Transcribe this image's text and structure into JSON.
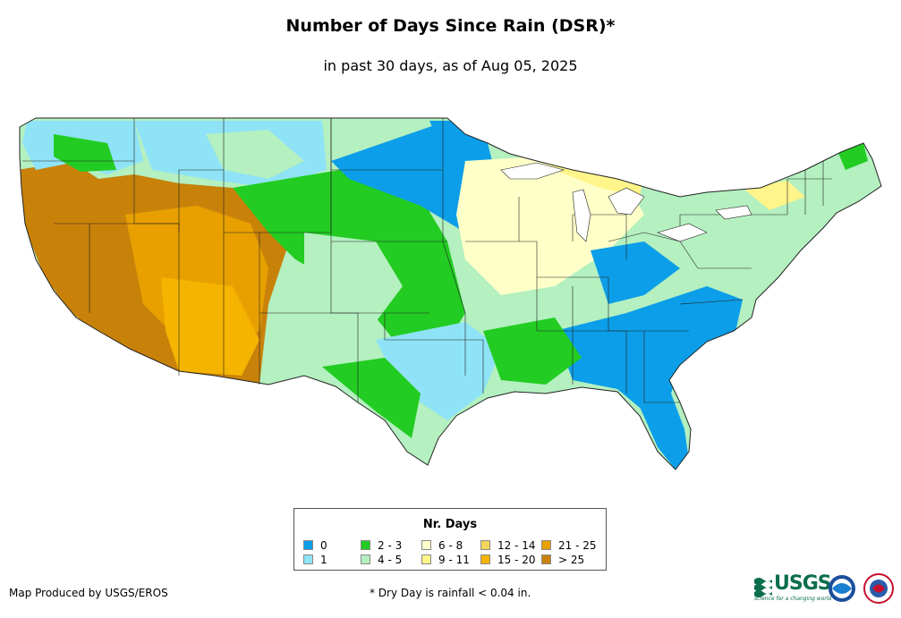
{
  "title": "Number of Days Since Rain (DSR)*",
  "subtitle": "in past 30 days, as of Aug 05, 2025",
  "legend": {
    "title": "Nr. Days",
    "items": [
      {
        "label": "0",
        "color": "#0c9ee8"
      },
      {
        "label": "1",
        "color": "#8fe3f7"
      },
      {
        "label": "2 - 3",
        "color": "#22cc22"
      },
      {
        "label": "4 - 5",
        "color": "#b4f0c0"
      },
      {
        "label": "6 - 8",
        "color": "#ffffc8"
      },
      {
        "label": "9 - 11",
        "color": "#fff58a"
      },
      {
        "label": "12 - 14",
        "color": "#f5d65c"
      },
      {
        "label": "15 - 20",
        "color": "#f5b400"
      },
      {
        "label": "21 - 25",
        "color": "#e8a000"
      },
      {
        "label": "> 25",
        "color": "#c8820a"
      }
    ]
  },
  "credit": "Map Produced by USGS/EROS",
  "note": "* Dry Day is rainfall < 0.04 in.",
  "logos": {
    "usgs_text": "USGS",
    "usgs_tagline": "science for a changing world",
    "noaa_icon": "noaa-logo",
    "nws_icon": "nws-logo"
  }
}
